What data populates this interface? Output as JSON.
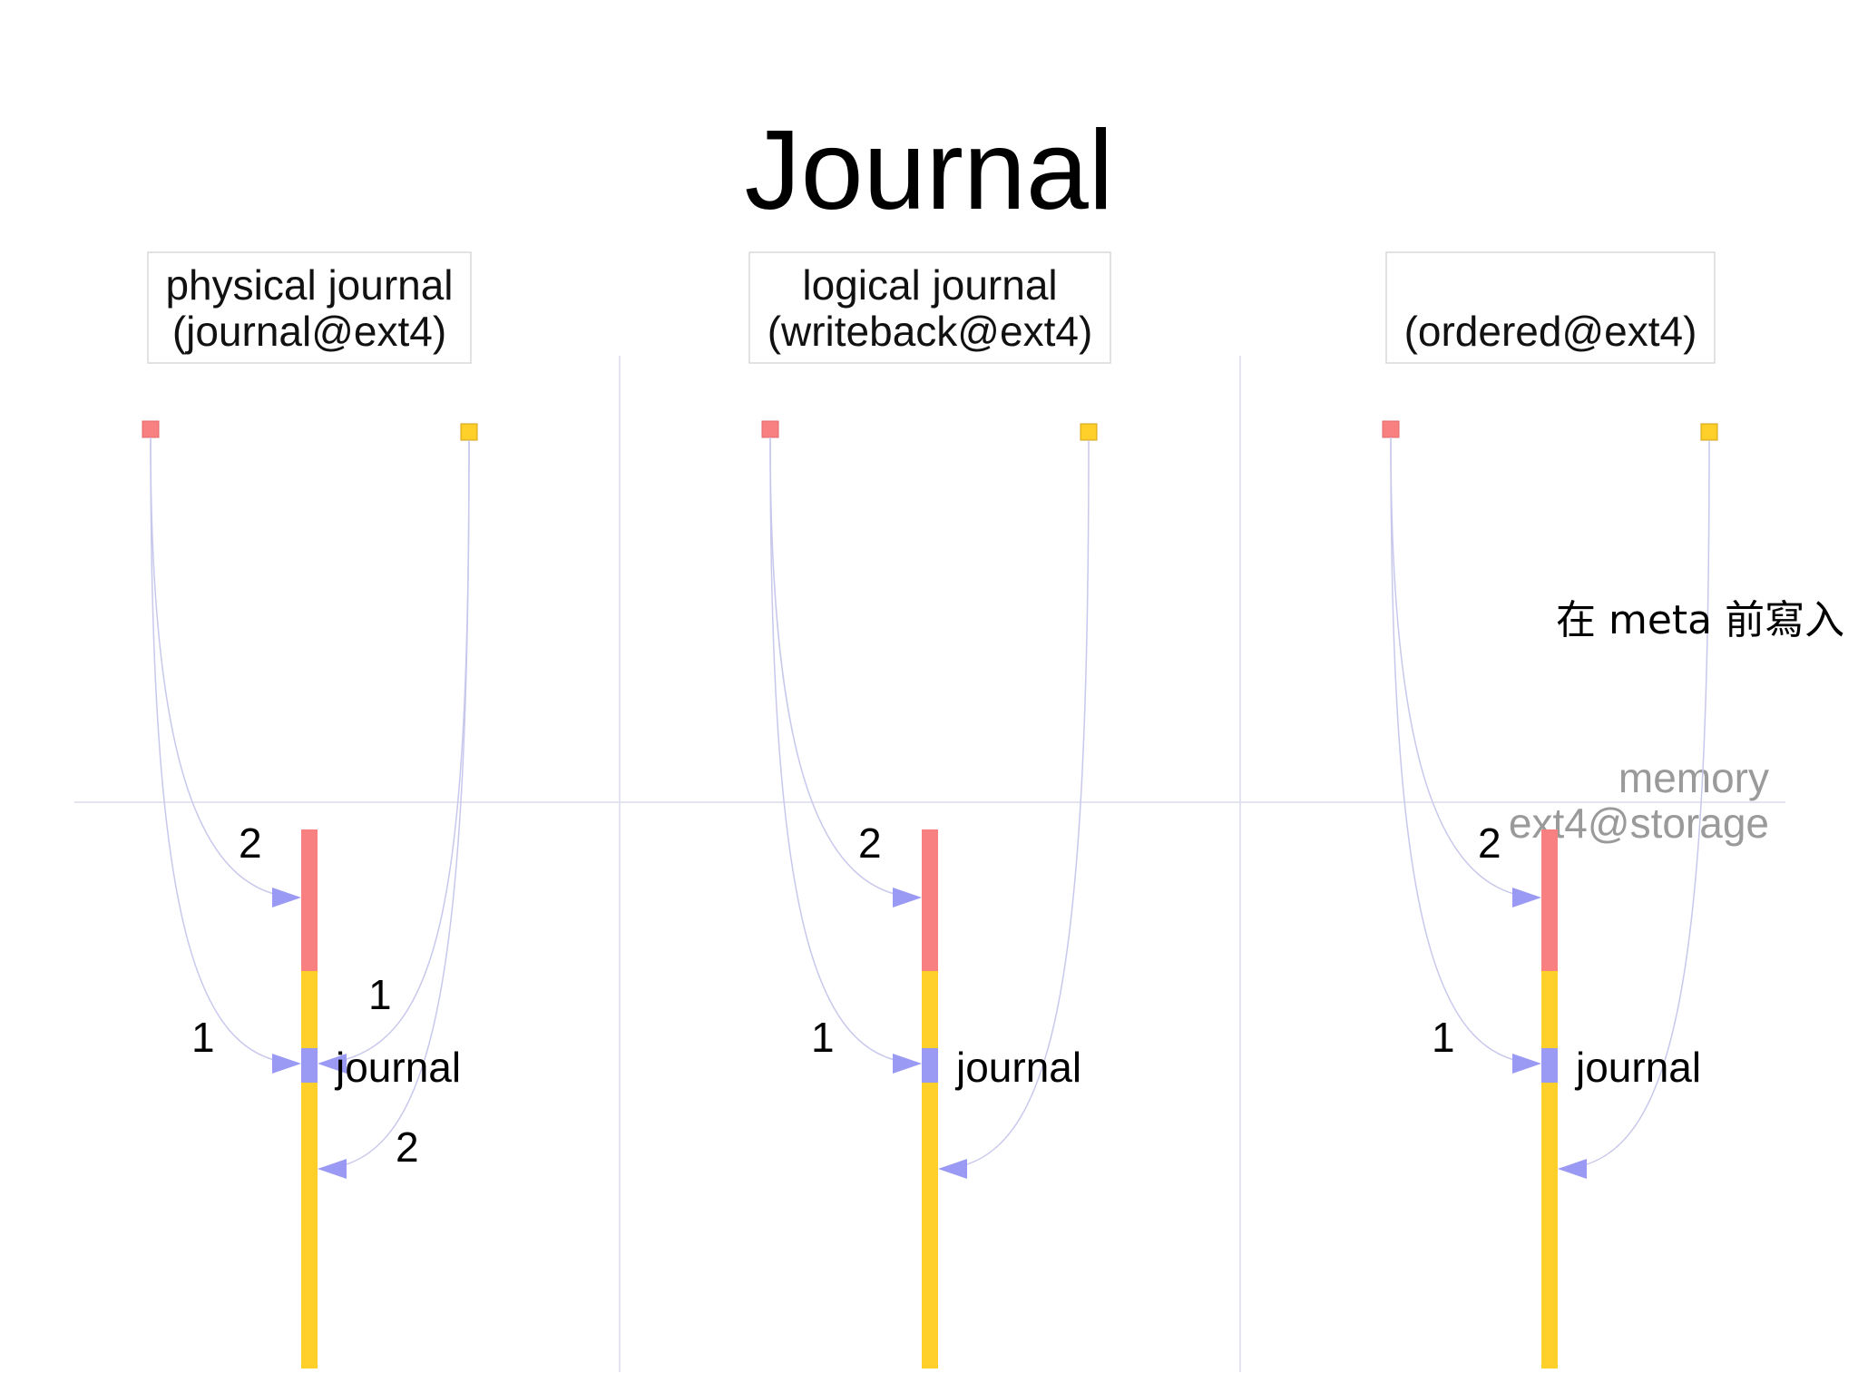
{
  "title": "Journal",
  "colors": {
    "meta": "#f88080",
    "data": "#ffd02a",
    "journal": "#9a9af5",
    "arrow": "#9a9af5",
    "curve": "#c8c8ec",
    "divider": "#dcdcec",
    "box_border": "#d8d8d8",
    "storage_label": "#9a9a9a"
  },
  "columns": [
    {
      "id": "physical",
      "header_lines": [
        "physical journal",
        "(journal@ext4)"
      ],
      "journal_label": "journal",
      "step_labels": [
        "2",
        "1",
        "1",
        "2"
      ]
    },
    {
      "id": "logical",
      "header_lines": [
        "logical journal",
        "(writeback@ext4)"
      ],
      "journal_label": "journal",
      "step_labels": [
        "2",
        "1"
      ]
    },
    {
      "id": "ordered",
      "header_lines": [
        "",
        "(ordered@ext4)"
      ],
      "journal_label": "journal",
      "step_labels": [
        "2",
        "1"
      ],
      "note": "在 meta 前寫入"
    }
  ],
  "divider_labels": {
    "upper": "memory",
    "lower": "ext4@storage"
  }
}
